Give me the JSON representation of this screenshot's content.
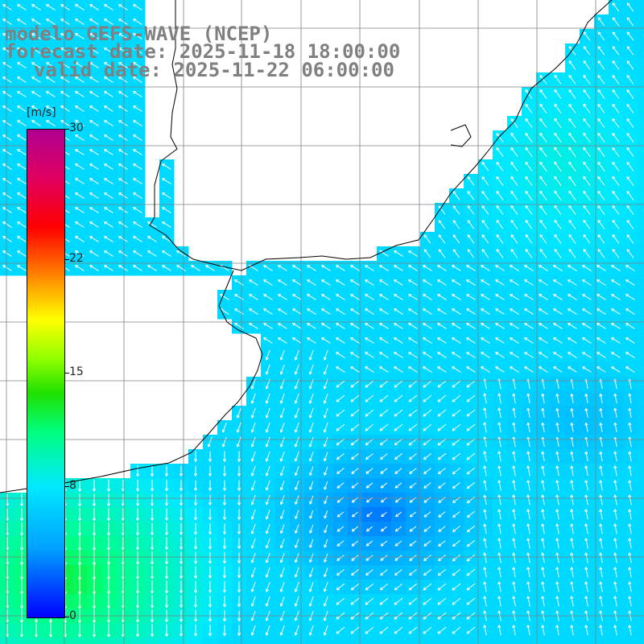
{
  "title": {
    "line1": "modelo GEFS-WAVE (NCEP)",
    "line2": "forecast date: 2025-11-18 18:00:00",
    "line3": "valid date: 2025-11-22 06:00:00"
  },
  "colorbar": {
    "unit": "[m/s]",
    "ticks": [
      {
        "value": 30,
        "label": "30"
      },
      {
        "value": 22,
        "label": "22"
      },
      {
        "value": 15,
        "label": "15"
      },
      {
        "value": 8,
        "label": "8"
      },
      {
        "value": 0,
        "label": "0"
      }
    ],
    "min": 0,
    "max": 30
  },
  "map": {
    "land_color": "#ffffff",
    "grid_color": "#808080",
    "coast_color": "#000000",
    "arrow_color": "#ffffff"
  }
}
